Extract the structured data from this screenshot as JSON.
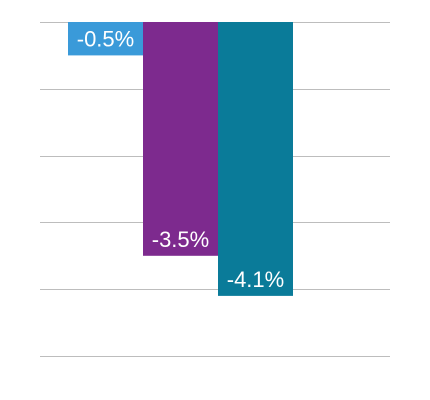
{
  "chart_data": {
    "type": "bar",
    "categories": [
      "",
      "",
      ""
    ],
    "values": [
      -0.5,
      -3.5,
      -4.1
    ],
    "value_labels": [
      "-0.5%",
      "-3.5%",
      "-4.1%"
    ],
    "colors": [
      "#3a9ad9",
      "#7d2a8e",
      "#0a7b99"
    ],
    "title": "",
    "xlabel": "",
    "ylabel": "",
    "ylim": [
      -5,
      0
    ],
    "grid": true,
    "legend": "none"
  }
}
